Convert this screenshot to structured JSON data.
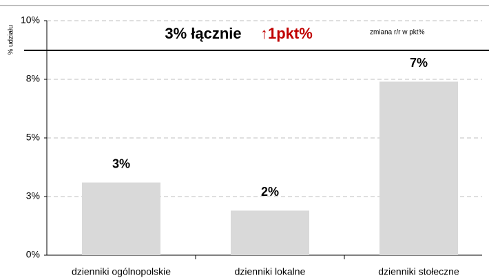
{
  "chart_data": {
    "type": "bar",
    "title": "3% łącznie",
    "annotation": "↑1pkt%",
    "note": "zmiana r/r w pkt%",
    "y_label": "% udziału",
    "categories": [
      "dzienniki ogólnopolskie",
      "dzienniki lokalne",
      "dzienniki stołeczne"
    ],
    "values": [
      3.1,
      1.9,
      7.4
    ],
    "value_labels": [
      "3%",
      "2%",
      "7%"
    ],
    "color": "#d9d9d9",
    "annotation_color": "#c00000",
    "ylim": [
      0,
      10
    ],
    "yticks": [
      {
        "value": 0,
        "label": "0%"
      },
      {
        "value": 2.5,
        "label": "3%"
      },
      {
        "value": 5,
        "label": "5%"
      },
      {
        "value": 7.5,
        "label": "8%"
      },
      {
        "value": 10,
        "label": "10%"
      }
    ],
    "grid": true
  }
}
